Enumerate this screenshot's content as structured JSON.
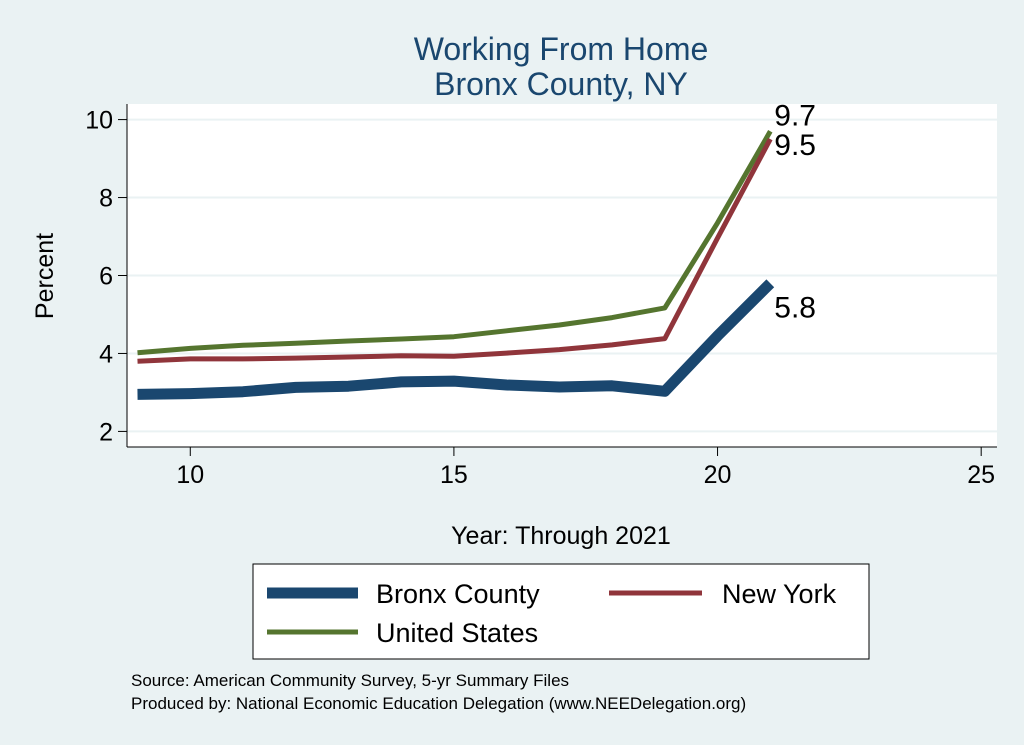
{
  "chart_data": {
    "type": "line",
    "title": "Working From Home",
    "subtitle": "Bronx County, NY",
    "xlabel": "Year: Through 2021",
    "ylabel": "Percent",
    "xlim": [
      8.8,
      25.3
    ],
    "ylim": [
      1.6,
      10.4
    ],
    "xticks": [
      10,
      15,
      20,
      25
    ],
    "yticks": [
      2,
      4,
      6,
      8,
      10
    ],
    "grid": true,
    "legend_position": "bottom",
    "x": [
      9,
      10,
      11,
      12,
      13,
      14,
      15,
      16,
      17,
      18,
      19,
      20,
      21
    ],
    "series": [
      {
        "name": "Bronx County",
        "color": "#1A476F",
        "values": [
          2.95,
          2.97,
          3.02,
          3.13,
          3.16,
          3.27,
          3.29,
          3.19,
          3.14,
          3.17,
          3.03,
          4.45,
          5.8
        ],
        "end_label": "5.8",
        "line_width": 11
      },
      {
        "name": "New York",
        "color": "#90353B",
        "values": [
          3.8,
          3.86,
          3.86,
          3.88,
          3.91,
          3.94,
          3.93,
          4.01,
          4.1,
          4.22,
          4.38,
          6.96,
          9.5
        ],
        "end_label": "9.5",
        "line_width": 5
      },
      {
        "name": "United States",
        "color": "#55752F",
        "values": [
          4.02,
          4.13,
          4.21,
          4.26,
          4.32,
          4.37,
          4.43,
          4.58,
          4.73,
          4.92,
          5.17,
          7.35,
          9.7
        ],
        "end_label": "9.7",
        "line_width": 5
      }
    ]
  },
  "notes": {
    "source": "Source: American Community Survey, 5-yr Summary Files",
    "produced": "Produced by: National Economic Education Delegation (www.NEEDelegation.org)"
  }
}
